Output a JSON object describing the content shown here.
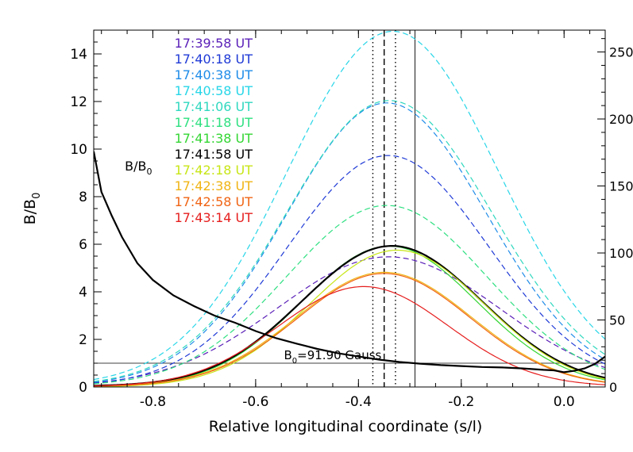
{
  "chart_data": {
    "type": "line",
    "xlabel": "Relative longitudinal coordinate (s/l)",
    "ylabel": "B/B",
    "ylabel_sub": "0",
    "xlim": [
      -0.915,
      0.08
    ],
    "ylim": [
      0,
      15
    ],
    "y2lim": [
      0,
      266.3
    ],
    "x_ticks": [
      -0.8,
      -0.6,
      -0.4,
      -0.2,
      0.0
    ],
    "x_tick_labels": [
      "-0.8",
      "-0.6",
      "-0.4",
      "-0.2",
      "0.0"
    ],
    "y_ticks": [
      0,
      2,
      4,
      6,
      8,
      10,
      12,
      14
    ],
    "y_tick_labels": [
      "0",
      "2",
      "4",
      "6",
      "8",
      "10",
      "12",
      "14"
    ],
    "y2_ticks": [
      0,
      50,
      100,
      150,
      200,
      250
    ],
    "y2_tick_labels": [
      "0",
      "50",
      "100",
      "150",
      "200",
      "250"
    ],
    "curve_label": {
      "text": "B/B",
      "sub": "0",
      "x": -0.87,
      "y": 9.1
    },
    "reference_line": {
      "y": 1.0,
      "label": "B",
      "label_sub": "0",
      "label_rest": "=91.90 Gauss",
      "label_x": -0.545
    },
    "vertical_lines": [
      {
        "x": -0.372,
        "style": "dotted"
      },
      {
        "x": -0.35,
        "style": "dashed"
      },
      {
        "x": -0.328,
        "style": "dotted"
      },
      {
        "x": -0.29,
        "style": "solid"
      }
    ],
    "ratio_curve": {
      "x": [
        -0.915,
        -0.9,
        -0.88,
        -0.86,
        -0.83,
        -0.8,
        -0.76,
        -0.72,
        -0.68,
        -0.64,
        -0.6,
        -0.56,
        -0.52,
        -0.48,
        -0.44,
        -0.4,
        -0.36,
        -0.32,
        -0.28,
        -0.24,
        -0.2,
        -0.16,
        -0.12,
        -0.08,
        -0.04,
        -0.02,
        0.0,
        0.02,
        0.04,
        0.06,
        0.08
      ],
      "y": [
        9.9,
        8.2,
        7.2,
        6.3,
        5.2,
        4.5,
        3.85,
        3.4,
        3.0,
        2.7,
        2.35,
        2.05,
        1.82,
        1.6,
        1.42,
        1.28,
        1.15,
        1.05,
        0.98,
        0.92,
        0.88,
        0.84,
        0.82,
        0.78,
        0.72,
        0.7,
        0.62,
        0.68,
        0.78,
        0.97,
        1.28
      ]
    },
    "series": [
      {
        "name": "17:39:58 UT",
        "color": "#5a1fb8",
        "style": "dashed",
        "width": 1.2,
        "center": -0.342,
        "peak": 5.45,
        "sigma": 0.215,
        "base": 0.02
      },
      {
        "name": "17:40:18 UT",
        "color": "#1f3ad6",
        "style": "dashed",
        "width": 1.2,
        "center": -0.342,
        "peak": 9.7,
        "sigma": 0.195,
        "base": 0.03
      },
      {
        "name": "17:40:38 UT",
        "color": "#1f8ce8",
        "style": "dashed",
        "width": 1.2,
        "center": -0.345,
        "peak": 11.9,
        "sigma": 0.195,
        "base": 0.04
      },
      {
        "name": "17:40:58 UT",
        "color": "#28d6e8",
        "style": "dashed",
        "width": 1.2,
        "center": -0.333,
        "peak": 14.9,
        "sigma": 0.205,
        "base": 0.05
      },
      {
        "name": "17:41:06 UT",
        "color": "#2fd8bf",
        "style": "dashed",
        "width": 1.2,
        "center": -0.34,
        "peak": 12.0,
        "sigma": 0.2,
        "base": 0.04
      },
      {
        "name": "17:41:18 UT",
        "color": "#2ee081",
        "style": "dashed",
        "width": 1.2,
        "center": -0.345,
        "peak": 7.6,
        "sigma": 0.195,
        "base": 0.03
      },
      {
        "name": "17:41:38 UT",
        "color": "#33d633",
        "style": "solid",
        "width": 1.2,
        "center": -0.34,
        "peak": 5.9,
        "sigma": 0.17,
        "base": 0.02
      },
      {
        "name": "17:41:58 UT",
        "color": "#000000",
        "style": "solid",
        "width": 2.2,
        "center": -0.335,
        "peak": 5.9,
        "sigma": 0.175,
        "base": 0.03
      },
      {
        "name": "17:42:18 UT",
        "color": "#c8e617",
        "style": "solid",
        "width": 1.2,
        "center": -0.325,
        "peak": 5.75,
        "sigma": 0.17,
        "base": 0.0
      },
      {
        "name": "17:42:38 UT",
        "color": "#f0b414",
        "style": "solid",
        "width": 1.2,
        "center": -0.35,
        "peak": 4.8,
        "sigma": 0.17,
        "base": 0.02
      },
      {
        "name": "17:42:58 UT",
        "color": "#f06414",
        "style": "solid",
        "width": 1.2,
        "center": -0.35,
        "peak": 4.75,
        "sigma": 0.168,
        "base": 0.02
      },
      {
        "name": "17:43:14 UT",
        "color": "#e61e1e",
        "style": "solid",
        "width": 1.2,
        "center": -0.39,
        "peak": 4.2,
        "sigma": 0.165,
        "base": 0.02
      }
    ]
  }
}
